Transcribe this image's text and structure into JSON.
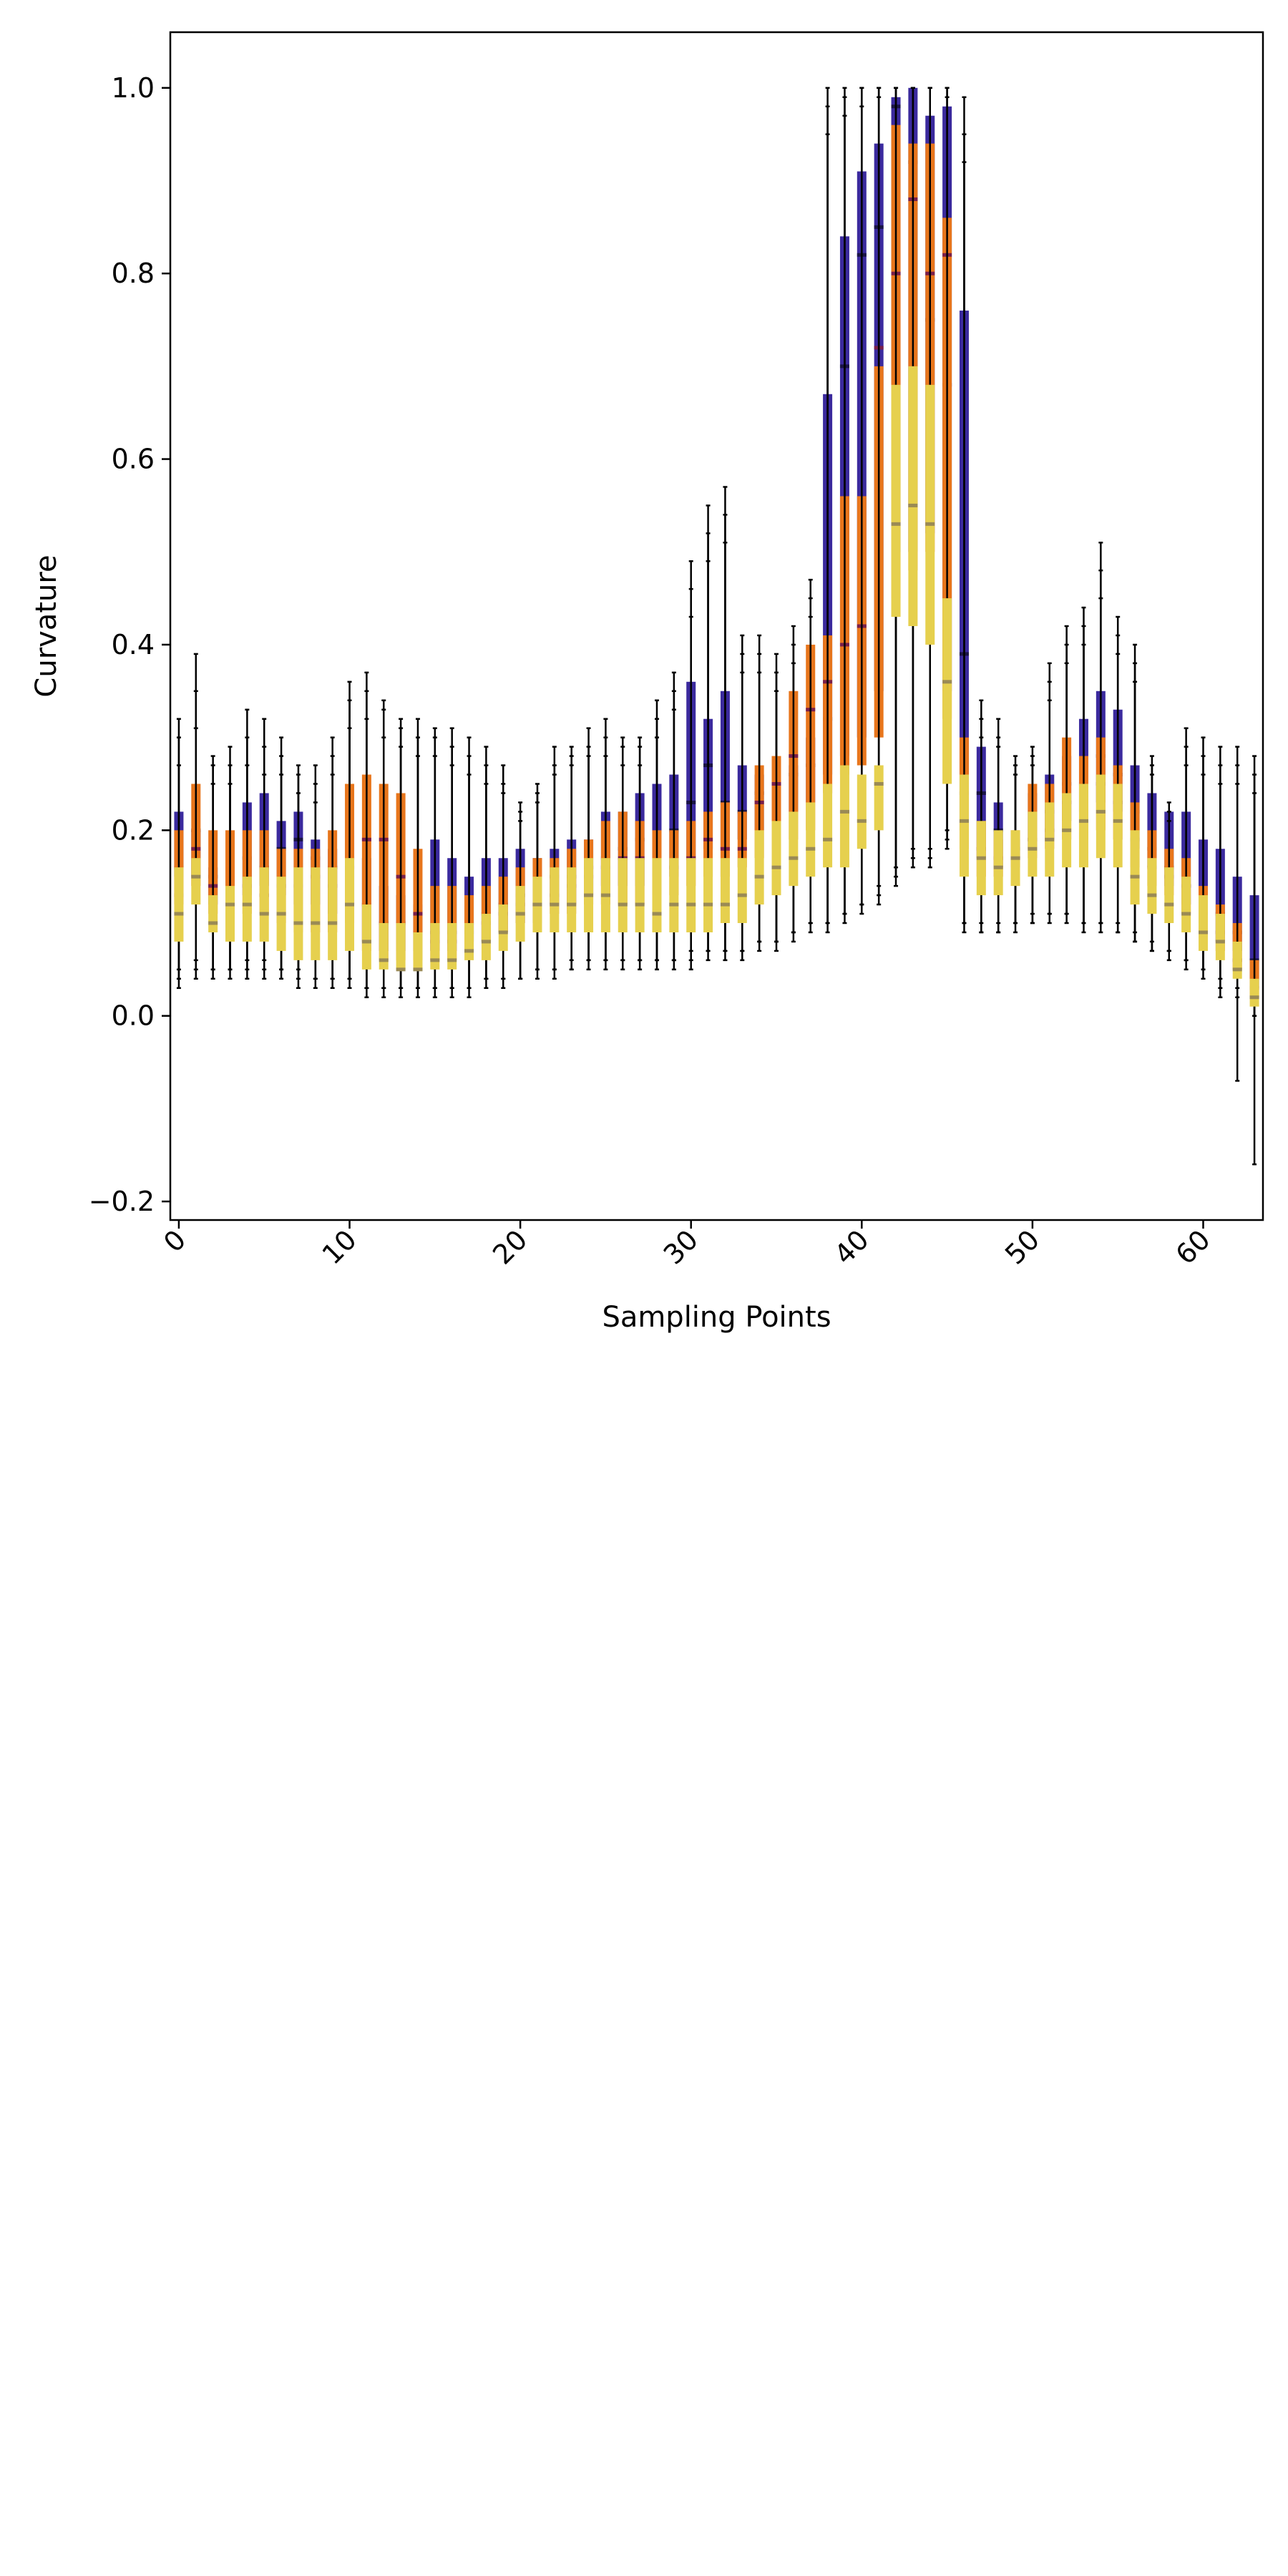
{
  "chart_data": {
    "type": "box",
    "title": "",
    "xlabel": "Sampling Points",
    "ylabel": "Curvature",
    "xlim": [
      -0.5,
      63.5
    ],
    "ylim": [
      -0.22,
      1.06
    ],
    "xticks": [
      0,
      10,
      20,
      30,
      40,
      50,
      60
    ],
    "yticks": [
      -0.2,
      0.0,
      0.2,
      0.4,
      0.6,
      0.8,
      1.0
    ],
    "xtick_labels": [
      "0",
      "10",
      "20",
      "30",
      "40",
      "50",
      "60"
    ],
    "ytick_labels": [
      "−0.2",
      "0.0",
      "0.2",
      "0.4",
      "0.6",
      "0.8",
      "1.0"
    ],
    "grid": false,
    "legend": "none",
    "series_colors": {
      "indigo_box": "#3b2a9e",
      "orange_box": "#e8761c",
      "yellow_box": "#e6d04e",
      "median_dark": "#1a1446",
      "median_maroon": "#7a1f4a",
      "median_olive": "#9a8a55",
      "whisker": "#000000"
    },
    "series": [
      {
        "style": "indigo",
        "x": [
          0,
          1,
          2,
          3,
          4,
          5,
          6,
          7,
          8,
          9,
          10,
          11,
          12,
          13,
          14,
          15,
          16,
          17,
          18,
          19,
          20,
          21,
          22,
          23,
          24,
          25,
          26,
          27,
          28,
          29,
          30,
          31,
          32,
          33,
          34,
          35,
          36,
          37,
          38,
          39,
          40,
          41,
          42,
          43,
          44,
          45,
          46,
          47,
          48,
          49,
          50,
          51,
          52,
          53,
          54,
          55,
          56,
          57,
          58,
          59,
          60,
          61,
          62,
          63
        ],
        "q1": [
          0.15,
          0.15,
          0.12,
          0.11,
          0.13,
          0.14,
          0.13,
          0.12,
          0.12,
          0.11,
          0.12,
          0.08,
          0.07,
          0.07,
          0.07,
          0.07,
          0.07,
          0.08,
          0.08,
          0.09,
          0.1,
          0.1,
          0.12,
          0.12,
          0.13,
          0.14,
          0.14,
          0.14,
          0.15,
          0.15,
          0.17,
          0.18,
          0.18,
          0.19,
          0.2,
          0.2,
          0.22,
          0.23,
          0.26,
          0.28,
          0.3,
          0.35,
          0.5,
          0.5,
          0.52,
          0.35,
          0.2,
          0.17,
          0.16,
          0.17,
          0.18,
          0.19,
          0.21,
          0.22,
          0.23,
          0.22,
          0.18,
          0.16,
          0.14,
          0.12,
          0.1,
          0.08,
          0.07,
          0.03
        ],
        "med": [
          0.16,
          0.2,
          0.15,
          0.14,
          0.17,
          0.16,
          0.18,
          0.19,
          0.17,
          0.16,
          0.17,
          0.12,
          0.1,
          0.1,
          0.09,
          0.09,
          0.09,
          0.1,
          0.11,
          0.12,
          0.13,
          0.12,
          0.15,
          0.15,
          0.16,
          0.17,
          0.18,
          0.19,
          0.18,
          0.2,
          0.23,
          0.27,
          0.23,
          0.22,
          0.24,
          0.23,
          0.26,
          0.27,
          0.32,
          0.7,
          0.82,
          0.85,
          0.98,
          0.92,
          0.75,
          0.68,
          0.39,
          0.24,
          0.2,
          0.18,
          0.19,
          0.22,
          0.25,
          0.25,
          0.28,
          0.26,
          0.22,
          0.18,
          0.16,
          0.14,
          0.12,
          0.11,
          0.09,
          0.06
        ],
        "q3": [
          0.22,
          0.2,
          0.16,
          0.16,
          0.23,
          0.24,
          0.21,
          0.22,
          0.19,
          0.18,
          0.2,
          0.17,
          0.14,
          0.13,
          0.12,
          0.19,
          0.17,
          0.15,
          0.17,
          0.17,
          0.18,
          0.17,
          0.18,
          0.19,
          0.19,
          0.22,
          0.22,
          0.24,
          0.25,
          0.26,
          0.36,
          0.32,
          0.35,
          0.27,
          0.26,
          0.25,
          0.27,
          0.3,
          0.67,
          0.84,
          0.91,
          0.94,
          0.99,
          1.0,
          0.97,
          0.98,
          0.76,
          0.29,
          0.23,
          0.19,
          0.24,
          0.26,
          0.28,
          0.32,
          0.35,
          0.33,
          0.27,
          0.24,
          0.22,
          0.22,
          0.19,
          0.18,
          0.15,
          0.13
        ],
        "lo": [
          0.04,
          0.05,
          0.05,
          0.05,
          0.06,
          0.06,
          0.05,
          0.05,
          0.04,
          0.04,
          0.04,
          0.03,
          0.03,
          0.03,
          0.03,
          0.03,
          0.03,
          0.03,
          0.04,
          0.04,
          0.04,
          0.05,
          0.05,
          0.06,
          0.06,
          0.06,
          0.06,
          0.06,
          0.06,
          0.06,
          0.07,
          0.07,
          0.07,
          0.07,
          0.08,
          0.08,
          0.09,
          0.1,
          0.1,
          0.11,
          0.12,
          0.14,
          0.16,
          0.18,
          0.18,
          0.2,
          0.1,
          0.1,
          0.1,
          0.1,
          0.11,
          0.11,
          0.11,
          0.1,
          0.1,
          0.1,
          0.09,
          0.08,
          0.07,
          0.06,
          0.05,
          0.04,
          0.03,
          0.0
        ],
        "hi": [
          0.32,
          0.39,
          0.28,
          0.29,
          0.33,
          0.32,
          0.3,
          0.27,
          0.27,
          0.3,
          0.36,
          0.37,
          0.34,
          0.32,
          0.32,
          0.31,
          0.31,
          0.3,
          0.29,
          0.27,
          0.23,
          0.25,
          0.29,
          0.29,
          0.31,
          0.32,
          0.3,
          0.3,
          0.34,
          0.37,
          0.49,
          0.55,
          0.57,
          0.41,
          0.41,
          0.39,
          0.42,
          0.47,
          1.0,
          1.0,
          1.0,
          1.0,
          1.0,
          1.0,
          1.0,
          1.0,
          0.99,
          0.34,
          0.32,
          0.28,
          0.29,
          0.38,
          0.42,
          0.44,
          0.51,
          0.43,
          0.4,
          0.28,
          0.23,
          0.31,
          0.3,
          0.29,
          0.29,
          0.28
        ]
      },
      {
        "style": "orange",
        "x": [
          0,
          1,
          2,
          3,
          4,
          5,
          6,
          7,
          8,
          9,
          10,
          11,
          12,
          13,
          14,
          15,
          16,
          17,
          18,
          19,
          20,
          21,
          22,
          23,
          24,
          25,
          26,
          27,
          28,
          29,
          30,
          31,
          32,
          33,
          34,
          35,
          36,
          37,
          38,
          39,
          40,
          41,
          42,
          43,
          44,
          45,
          46,
          47,
          48,
          49,
          50,
          51,
          52,
          53,
          54,
          55,
          56,
          57,
          58,
          59,
          60,
          61,
          62,
          63
        ],
        "q1": [
          0.12,
          0.14,
          0.11,
          0.1,
          0.11,
          0.11,
          0.1,
          0.09,
          0.09,
          0.09,
          0.1,
          0.07,
          0.06,
          0.06,
          0.06,
          0.06,
          0.06,
          0.07,
          0.08,
          0.09,
          0.1,
          0.1,
          0.11,
          0.11,
          0.12,
          0.12,
          0.12,
          0.12,
          0.13,
          0.13,
          0.14,
          0.15,
          0.15,
          0.16,
          0.17,
          0.18,
          0.19,
          0.2,
          0.24,
          0.26,
          0.27,
          0.3,
          0.45,
          0.48,
          0.5,
          0.32,
          0.18,
          0.15,
          0.15,
          0.16,
          0.17,
          0.18,
          0.19,
          0.19,
          0.2,
          0.19,
          0.16,
          0.14,
          0.13,
          0.11,
          0.09,
          0.07,
          0.05,
          0.02
        ],
        "med": [
          0.13,
          0.18,
          0.14,
          0.12,
          0.14,
          0.13,
          0.14,
          0.14,
          0.15,
          0.14,
          0.16,
          0.19,
          0.19,
          0.15,
          0.11,
          0.08,
          0.08,
          0.09,
          0.1,
          0.11,
          0.12,
          0.12,
          0.13,
          0.14,
          0.15,
          0.16,
          0.17,
          0.17,
          0.15,
          0.16,
          0.17,
          0.19,
          0.18,
          0.18,
          0.23,
          0.25,
          0.28,
          0.33,
          0.36,
          0.4,
          0.42,
          0.72,
          0.8,
          0.88,
          0.8,
          0.82,
          0.24,
          0.18,
          0.17,
          0.17,
          0.19,
          0.2,
          0.23,
          0.21,
          0.25,
          0.23,
          0.19,
          0.16,
          0.15,
          0.14,
          0.11,
          0.09,
          0.06,
          0.03
        ],
        "q3": [
          0.2,
          0.25,
          0.2,
          0.2,
          0.2,
          0.2,
          0.18,
          0.18,
          0.18,
          0.2,
          0.25,
          0.26,
          0.25,
          0.24,
          0.18,
          0.14,
          0.14,
          0.13,
          0.14,
          0.15,
          0.16,
          0.17,
          0.17,
          0.18,
          0.19,
          0.21,
          0.22,
          0.21,
          0.2,
          0.2,
          0.21,
          0.22,
          0.23,
          0.22,
          0.27,
          0.28,
          0.35,
          0.4,
          0.41,
          0.56,
          0.56,
          0.7,
          0.96,
          0.94,
          0.94,
          0.86,
          0.3,
          0.21,
          0.19,
          0.2,
          0.25,
          0.25,
          0.3,
          0.28,
          0.3,
          0.27,
          0.23,
          0.2,
          0.18,
          0.17,
          0.14,
          0.12,
          0.1,
          0.06
        ],
        "lo": [
          0.05,
          0.06,
          0.05,
          0.05,
          0.05,
          0.05,
          0.05,
          0.04,
          0.04,
          0.04,
          0.04,
          0.03,
          0.03,
          0.03,
          0.03,
          0.03,
          0.03,
          0.03,
          0.04,
          0.04,
          0.04,
          0.05,
          0.05,
          0.05,
          0.06,
          0.06,
          0.06,
          0.06,
          0.06,
          0.06,
          0.06,
          0.07,
          0.07,
          0.07,
          0.08,
          0.08,
          0.09,
          0.1,
          0.1,
          0.11,
          0.12,
          0.13,
          0.15,
          0.17,
          0.17,
          0.19,
          0.1,
          0.09,
          0.09,
          0.1,
          0.1,
          0.11,
          0.11,
          0.1,
          0.1,
          0.09,
          0.08,
          0.07,
          0.07,
          0.06,
          0.05,
          0.03,
          0.02,
          0.0
        ],
        "hi": [
          0.3,
          0.35,
          0.27,
          0.27,
          0.3,
          0.29,
          0.28,
          0.26,
          0.25,
          0.28,
          0.34,
          0.35,
          0.33,
          0.31,
          0.3,
          0.3,
          0.29,
          0.28,
          0.27,
          0.25,
          0.22,
          0.24,
          0.27,
          0.28,
          0.29,
          0.3,
          0.29,
          0.29,
          0.32,
          0.35,
          0.46,
          0.52,
          0.54,
          0.39,
          0.39,
          0.37,
          0.4,
          0.45,
          0.98,
          0.99,
          1.0,
          1.0,
          1.0,
          1.0,
          1.0,
          1.0,
          0.95,
          0.32,
          0.3,
          0.27,
          0.28,
          0.36,
          0.4,
          0.42,
          0.48,
          0.41,
          0.38,
          0.27,
          0.22,
          0.29,
          0.28,
          0.27,
          0.27,
          0.26
        ]
      },
      {
        "style": "yellow",
        "x": [
          0,
          1,
          2,
          3,
          4,
          5,
          6,
          7,
          8,
          9,
          10,
          11,
          12,
          13,
          14,
          15,
          16,
          17,
          18,
          19,
          20,
          21,
          22,
          23,
          24,
          25,
          26,
          27,
          28,
          29,
          30,
          31,
          32,
          33,
          34,
          35,
          36,
          37,
          38,
          39,
          40,
          41,
          42,
          43,
          44,
          45,
          46,
          47,
          48,
          49,
          50,
          51,
          52,
          53,
          54,
          55,
          56,
          57,
          58,
          59,
          60,
          61,
          62,
          63
        ],
        "q1": [
          0.08,
          0.12,
          0.09,
          0.08,
          0.08,
          0.08,
          0.07,
          0.06,
          0.06,
          0.06,
          0.07,
          0.05,
          0.05,
          0.05,
          0.05,
          0.05,
          0.05,
          0.06,
          0.06,
          0.07,
          0.08,
          0.09,
          0.09,
          0.09,
          0.09,
          0.09,
          0.09,
          0.09,
          0.09,
          0.09,
          0.09,
          0.09,
          0.1,
          0.1,
          0.12,
          0.13,
          0.14,
          0.15,
          0.16,
          0.16,
          0.18,
          0.2,
          0.43,
          0.42,
          0.4,
          0.25,
          0.15,
          0.13,
          0.13,
          0.14,
          0.15,
          0.15,
          0.16,
          0.16,
          0.17,
          0.16,
          0.12,
          0.11,
          0.1,
          0.09,
          0.07,
          0.06,
          0.04,
          0.01
        ],
        "med": [
          0.11,
          0.15,
          0.1,
          0.12,
          0.12,
          0.11,
          0.11,
          0.1,
          0.1,
          0.1,
          0.12,
          0.08,
          0.06,
          0.05,
          0.05,
          0.06,
          0.06,
          0.07,
          0.08,
          0.09,
          0.11,
          0.12,
          0.12,
          0.12,
          0.13,
          0.13,
          0.12,
          0.12,
          0.11,
          0.12,
          0.12,
          0.12,
          0.12,
          0.13,
          0.15,
          0.16,
          0.17,
          0.18,
          0.19,
          0.22,
          0.21,
          0.25,
          0.53,
          0.55,
          0.53,
          0.36,
          0.21,
          0.17,
          0.16,
          0.17,
          0.18,
          0.19,
          0.2,
          0.21,
          0.22,
          0.21,
          0.15,
          0.13,
          0.12,
          0.11,
          0.09,
          0.08,
          0.05,
          0.02
        ],
        "q3": [
          0.16,
          0.17,
          0.13,
          0.14,
          0.15,
          0.16,
          0.15,
          0.16,
          0.16,
          0.16,
          0.17,
          0.12,
          0.1,
          0.1,
          0.09,
          0.1,
          0.1,
          0.1,
          0.11,
          0.12,
          0.14,
          0.15,
          0.16,
          0.16,
          0.17,
          0.17,
          0.17,
          0.17,
          0.17,
          0.17,
          0.17,
          0.17,
          0.17,
          0.17,
          0.2,
          0.21,
          0.22,
          0.23,
          0.25,
          0.27,
          0.26,
          0.27,
          0.68,
          0.7,
          0.68,
          0.45,
          0.26,
          0.21,
          0.2,
          0.2,
          0.22,
          0.23,
          0.24,
          0.25,
          0.26,
          0.25,
          0.2,
          0.17,
          0.16,
          0.15,
          0.13,
          0.11,
          0.08,
          0.04
        ],
        "lo": [
          0.03,
          0.04,
          0.04,
          0.04,
          0.04,
          0.04,
          0.04,
          0.03,
          0.03,
          0.03,
          0.03,
          0.02,
          0.02,
          0.02,
          0.02,
          0.02,
          0.02,
          0.02,
          0.03,
          0.03,
          0.04,
          0.04,
          0.04,
          0.05,
          0.05,
          0.05,
          0.05,
          0.05,
          0.05,
          0.05,
          0.05,
          0.06,
          0.06,
          0.06,
          0.07,
          0.07,
          0.08,
          0.09,
          0.09,
          0.1,
          0.11,
          0.12,
          0.14,
          0.16,
          0.16,
          0.18,
          0.09,
          0.09,
          0.09,
          0.09,
          0.1,
          0.1,
          0.1,
          0.09,
          0.09,
          0.09,
          0.08,
          0.07,
          0.06,
          0.05,
          0.04,
          0.02,
          -0.07,
          -0.16
        ],
        "hi": [
          0.27,
          0.31,
          0.25,
          0.25,
          0.27,
          0.26,
          0.26,
          0.24,
          0.23,
          0.26,
          0.31,
          0.32,
          0.3,
          0.29,
          0.28,
          0.28,
          0.27,
          0.26,
          0.25,
          0.24,
          0.21,
          0.23,
          0.26,
          0.27,
          0.28,
          0.28,
          0.27,
          0.27,
          0.3,
          0.33,
          0.43,
          0.49,
          0.51,
          0.37,
          0.37,
          0.35,
          0.38,
          0.43,
          0.95,
          0.97,
          0.98,
          0.99,
          1.0,
          1.0,
          1.0,
          0.99,
          0.92,
          0.3,
          0.29,
          0.26,
          0.27,
          0.34,
          0.38,
          0.4,
          0.45,
          0.39,
          0.36,
          0.26,
          0.21,
          0.27,
          0.26,
          0.25,
          0.25,
          0.24
        ]
      }
    ]
  }
}
